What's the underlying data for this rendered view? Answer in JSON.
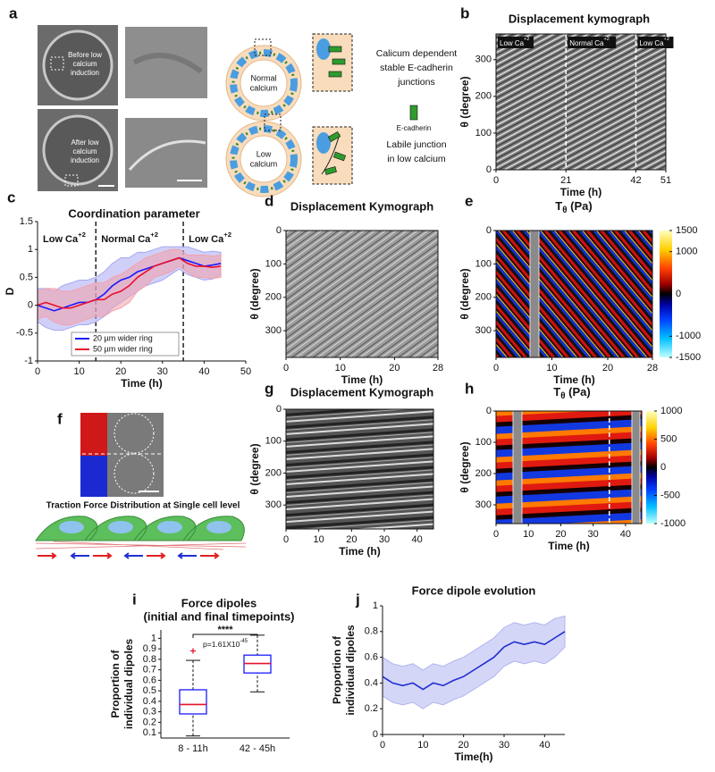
{
  "figure": {
    "a": {
      "panel": "a",
      "before": [
        "Before low",
        "calcium",
        "induction"
      ],
      "after": [
        "After low",
        "calcium",
        "induction"
      ],
      "normal": [
        "Normal",
        "calcium"
      ],
      "low": [
        "Low",
        "calcium"
      ],
      "stable": [
        "Calicum dependent",
        "stable E-cadherin",
        "junctions"
      ],
      "legend": "E-cadherin",
      "labile": [
        "Labile junction",
        "in low calcium"
      ]
    },
    "f": {
      "panel": "f",
      "caption": "Traction Force Distribution at Single cell level"
    }
  },
  "chart_data": [
    {
      "type": "kymograph",
      "panel": "b",
      "title": "Displacement kymograph",
      "xlabel": "Time (h)",
      "ylabel": "θ (degree)",
      "xlim": [
        0,
        51
      ],
      "xticks": [
        0,
        21,
        42,
        51
      ],
      "ylim": [
        0,
        370
      ],
      "yticks": [
        0,
        100,
        200,
        300
      ],
      "phase_boundaries": [
        21,
        42
      ],
      "phase_labels": [
        {
          "text": "Low Ca",
          "sup": "+2"
        },
        {
          "text": "Normal Ca",
          "sup": "+2"
        },
        {
          "text": "Low Ca",
          "sup": "+2"
        }
      ]
    },
    {
      "type": "line",
      "panel": "c",
      "title": "Coordination parameter",
      "xlabel": "Time (h)",
      "ylabel": "D",
      "x": [
        0,
        2,
        4,
        6,
        8,
        10,
        12,
        14,
        16,
        18,
        20,
        22,
        24,
        26,
        28,
        30,
        32,
        34,
        36,
        38,
        40,
        42,
        44
      ],
      "xlim": [
        0,
        50
      ],
      "xticks": [
        0,
        10,
        20,
        30,
        40,
        50
      ],
      "ylim": [
        -1,
        1.5
      ],
      "yticks": [
        -1,
        -0.5,
        0,
        0.5,
        1,
        1.5
      ],
      "phase_boundaries": [
        14,
        35
      ],
      "phase_labels": [
        {
          "text": "Low Ca",
          "sup": "+2"
        },
        {
          "text": "Normal Ca",
          "sup": "+2"
        },
        {
          "text": "Low Ca",
          "sup": "+2"
        }
      ],
      "legend": "lower left",
      "series": [
        {
          "name": "20 µm wider ring",
          "color": "#1a1aff",
          "band_color": "#a8a8f2",
          "values": [
            0,
            -0.05,
            -0.1,
            -0.05,
            0,
            0.05,
            0.05,
            0.1,
            0.2,
            0.35,
            0.45,
            0.5,
            0.6,
            0.65,
            0.7,
            0.75,
            0.8,
            0.85,
            0.8,
            0.75,
            0.7,
            0.72,
            0.75
          ],
          "error": [
            0.3,
            0.35,
            0.35,
            0.4,
            0.4,
            0.4,
            0.4,
            0.4,
            0.4,
            0.4,
            0.4,
            0.35,
            0.35,
            0.3,
            0.3,
            0.3,
            0.25,
            0.2,
            0.25,
            0.25,
            0.25,
            0.25,
            0.2
          ]
        },
        {
          "name": "50 µm wider ring",
          "color": "#e8112d",
          "band_color": "#f4a0aa",
          "values": [
            0,
            0.05,
            0,
            -0.05,
            -0.05,
            0,
            0.05,
            0.1,
            0.1,
            0.2,
            0.25,
            0.35,
            0.5,
            0.6,
            0.7,
            0.75,
            0.8,
            0.85,
            0.75,
            0.7,
            0.7,
            0.68,
            0.7
          ],
          "error": [
            0.25,
            0.25,
            0.3,
            0.3,
            0.3,
            0.3,
            0.3,
            0.3,
            0.3,
            0.3,
            0.3,
            0.3,
            0.25,
            0.25,
            0.2,
            0.2,
            0.2,
            0.15,
            0.15,
            0.2,
            0.2,
            0.2,
            0.2
          ]
        }
      ]
    },
    {
      "type": "kymograph",
      "panel": "d",
      "title": "Displacement Kymograph",
      "xlabel": "Time (h)",
      "ylabel": "θ (degree)",
      "xlim": [
        0,
        28
      ],
      "xticks": [
        0,
        10,
        20,
        28
      ],
      "ylim": [
        0,
        380
      ],
      "yticks": [
        0,
        100,
        200,
        300
      ],
      "y_inverted": true
    },
    {
      "type": "heatmap",
      "panel": "e",
      "title": "T",
      "title_sub": "θ",
      "title_unit": " (Pa)",
      "xlabel": "Time (h)",
      "ylabel": "θ (degree)",
      "xlim": [
        0,
        28
      ],
      "xticks": [
        0,
        10,
        20,
        28
      ],
      "ylim": [
        0,
        380
      ],
      "yticks": [
        0,
        100,
        200,
        300
      ],
      "y_inverted": true,
      "clim": [
        -1500,
        1500
      ],
      "cticks": [
        1500,
        1000,
        0,
        -1000,
        -1500
      ]
    },
    {
      "type": "kymograph",
      "panel": "g",
      "title": "Displacement Kymograph",
      "xlabel": "Time (h)",
      "ylabel": "θ (degree)",
      "xlim": [
        0,
        45
      ],
      "xticks": [
        0,
        10,
        20,
        30,
        40
      ],
      "ylim": [
        0,
        375
      ],
      "yticks": [
        0,
        100,
        200,
        300
      ],
      "y_inverted": true
    },
    {
      "type": "heatmap",
      "panel": "h",
      "title": "T",
      "title_sub": "θ",
      "title_unit": " (Pa)",
      "xlabel": "Time (h)",
      "ylabel": "θ (degree)",
      "xlim": [
        0,
        45
      ],
      "xticks": [
        0,
        10,
        20,
        30,
        40
      ],
      "ylim": [
        0,
        360
      ],
      "yticks": [
        0,
        100,
        200,
        300
      ],
      "y_inverted": true,
      "phase_boundaries": [
        35
      ],
      "clim": [
        -1000,
        1000
      ],
      "cticks": [
        1000,
        500,
        0,
        -500,
        -1000
      ]
    },
    {
      "type": "box",
      "panel": "i",
      "title": [
        "Force dipoles",
        "(initial and final timepoints)"
      ],
      "ylabel": [
        "Proportion of",
        "individual dipoles"
      ],
      "categories": [
        "8 - 11h",
        "42 - 45h"
      ],
      "ylim": [
        0.05,
        1.08
      ],
      "yticks": [
        0.1,
        0.2,
        0.3,
        0.4,
        0.5,
        0.6,
        0.7,
        0.8,
        0.9,
        1
      ],
      "boxes": [
        {
          "low": 0.07,
          "q1": 0.28,
          "median": 0.37,
          "q3": 0.51,
          "high": 0.79,
          "outliers": [
            0.88
          ]
        },
        {
          "low": 0.49,
          "q1": 0.67,
          "median": 0.76,
          "q3": 0.84,
          "high": 1.03,
          "outliers": []
        }
      ],
      "box_color": "#1a1aff",
      "median_color": "#e8112d",
      "significance": "****",
      "p_value": {
        "text": "p=1.61X10",
        "sup": "-45"
      }
    },
    {
      "type": "line",
      "panel": "j",
      "title": "Force dipole evolution",
      "xlabel": "Time(h)",
      "ylabel": [
        "Proportion of",
        "individual dipoles"
      ],
      "x": [
        0,
        2.5,
        5,
        7.5,
        10,
        12.5,
        15,
        17.5,
        20,
        22.5,
        25,
        27.5,
        30,
        32.5,
        35,
        37.5,
        40,
        42.5,
        45
      ],
      "xlim": [
        0,
        45
      ],
      "xticks": [
        0,
        10,
        20,
        30,
        40
      ],
      "ylim": [
        0,
        1
      ],
      "yticks": [
        0,
        0.2,
        0.4,
        0.6,
        0.8,
        1
      ],
      "series": [
        {
          "color": "#1f2fd0",
          "band_color": "#b0b4f0",
          "values": [
            0.45,
            0.4,
            0.38,
            0.4,
            0.35,
            0.4,
            0.38,
            0.42,
            0.45,
            0.5,
            0.55,
            0.6,
            0.68,
            0.72,
            0.7,
            0.72,
            0.7,
            0.75,
            0.8
          ],
          "error": [
            0.15,
            0.15,
            0.15,
            0.15,
            0.15,
            0.15,
            0.15,
            0.15,
            0.15,
            0.15,
            0.15,
            0.15,
            0.15,
            0.15,
            0.15,
            0.15,
            0.15,
            0.15,
            0.12
          ]
        }
      ]
    }
  ]
}
